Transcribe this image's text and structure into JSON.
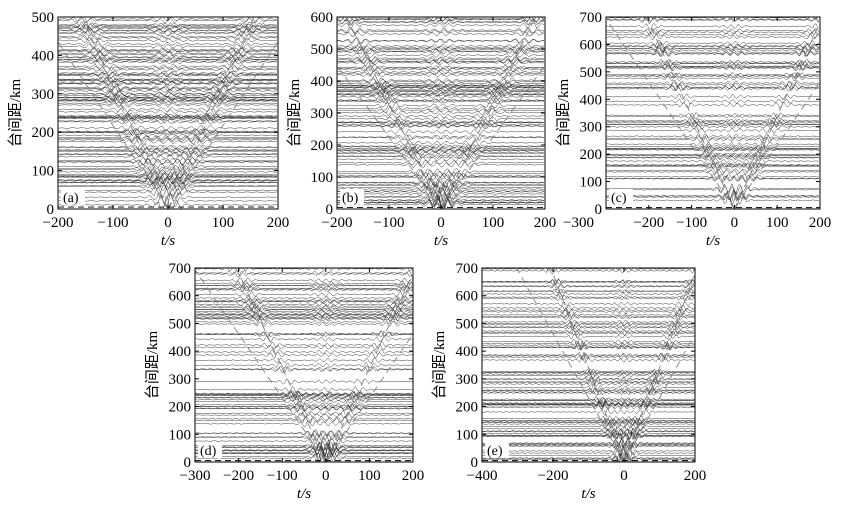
{
  "figure": {
    "background": "#ffffff",
    "trace_color": "#2a2a2a",
    "dashed_color": "#808080"
  },
  "chart_data": [
    {
      "type": "waveform-record-section",
      "panel_label": "(a)",
      "xlabel": "t/s",
      "ylabel": "台间距/km",
      "xlim": [
        -200,
        200
      ],
      "ylim": [
        0,
        500
      ],
      "xticks": [
        -200,
        -100,
        0,
        100,
        200
      ],
      "xtick_labels": [
        "−200",
        "−100",
        "0",
        "100",
        "200"
      ],
      "yticks": [
        0,
        100,
        200,
        300,
        400,
        500
      ],
      "ytick_labels": [
        "0",
        "100",
        "200",
        "300",
        "400",
        "500"
      ],
      "trace_count": 110,
      "move_out_velocity_km_s": 3.2,
      "dashed_baseline_km": 5,
      "grid": false,
      "legend": "none"
    },
    {
      "type": "waveform-record-section",
      "panel_label": "(b)",
      "xlabel": "t/s",
      "ylabel": "台间距/km",
      "xlim": [
        -200,
        200
      ],
      "ylim": [
        0,
        600
      ],
      "xticks": [
        -200,
        -100,
        0,
        100,
        200
      ],
      "xtick_labels": [
        "−200",
        "−100",
        "0",
        "100",
        "200"
      ],
      "yticks": [
        0,
        100,
        200,
        300,
        400,
        500,
        600
      ],
      "ytick_labels": [
        "0",
        "100",
        "200",
        "300",
        "400",
        "500",
        "600"
      ],
      "trace_count": 100,
      "move_out_velocity_km_s": 3.3,
      "dashed_baseline_km": 5,
      "grid": false,
      "legend": "none"
    },
    {
      "type": "waveform-record-section",
      "panel_label": "(c)",
      "xlabel": "t/s",
      "ylabel": "台间距/km",
      "xlim": [
        -300,
        200
      ],
      "ylim": [
        0,
        700
      ],
      "xticks": [
        -200,
        -100,
        0,
        100,
        200
      ],
      "xtick_labels": [
        "−200",
        "−100",
        "0",
        "100",
        "200"
      ],
      "left_edge_labels": [
        "−200",
        "−300"
      ],
      "yticks": [
        0,
        100,
        200,
        300,
        400,
        500,
        600,
        700
      ],
      "ytick_labels": [
        "0",
        "100",
        "200",
        "300",
        "400",
        "500",
        "600",
        "700"
      ],
      "trace_count": 75,
      "move_out_velocity_km_s": 3.4,
      "dashed_baseline_km": 5,
      "grid": false,
      "legend": "none"
    },
    {
      "type": "waveform-record-section",
      "panel_label": "(d)",
      "xlabel": "t/s",
      "ylabel": "台间距/km",
      "xlim": [
        -300,
        200
      ],
      "ylim": [
        0,
        700
      ],
      "xticks": [
        -300,
        -200,
        -100,
        0,
        100,
        200
      ],
      "xtick_labels": [
        "−300",
        "−200",
        "−100",
        "0",
        "100",
        "200"
      ],
      "yticks": [
        0,
        100,
        200,
        300,
        400,
        500,
        600,
        700
      ],
      "ytick_labels": [
        "0",
        "100",
        "200",
        "300",
        "400",
        "500",
        "600",
        "700"
      ],
      "trace_count": 80,
      "move_out_velocity_km_s": 3.4,
      "dashed_baseline_km": 5,
      "grid": false,
      "legend": "none"
    },
    {
      "type": "waveform-record-section",
      "panel_label": "(e)",
      "xlabel": "t/s",
      "ylabel": "台间距/km",
      "xlim": [
        -400,
        200
      ],
      "ylim": [
        0,
        700
      ],
      "xticks": [
        -400,
        -200,
        0,
        200
      ],
      "xtick_labels": [
        "−400",
        "−200",
        "0",
        "200"
      ],
      "yticks": [
        0,
        100,
        200,
        300,
        400,
        500,
        600,
        700
      ],
      "ytick_labels": [
        "0",
        "100",
        "200",
        "300",
        "400",
        "500",
        "600",
        "700"
      ],
      "trace_count": 90,
      "move_out_velocity_km_s": 3.4,
      "dashed_baseline_km": 5,
      "grid": false,
      "legend": "none"
    }
  ]
}
